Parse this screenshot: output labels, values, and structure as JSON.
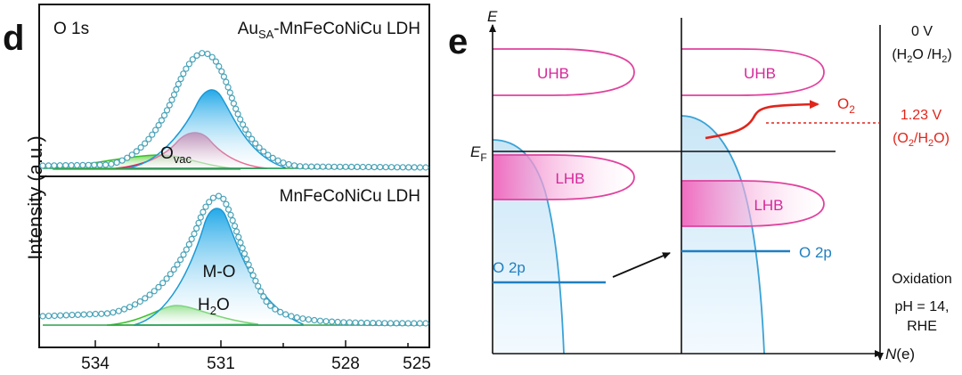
{
  "panel_d": {
    "letter": "d",
    "spectrum_label": "O 1s",
    "top_sample": {
      "prefix": "Au",
      "subscript": "SA",
      "suffix": "-MnFeCoNiCu LDH"
    },
    "bottom_sample": "MnFeCoNiCu LDH",
    "y_axis_label": "Intensity (a.u.)",
    "peaks": {
      "ovac": {
        "main": "O",
        "sub": "vac"
      },
      "mo": "M-O",
      "h2o": {
        "a": "H",
        "sub": "2",
        "b": "O"
      }
    }
  },
  "panel_e": {
    "letter": "e",
    "y_axis": "E",
    "x_axis": {
      "main": "N",
      "rest": "(e)"
    },
    "fermi": {
      "main": "E",
      "sub": "F"
    },
    "uhb_label": "UHB",
    "lhb_label": "LHB",
    "o2p_label": "O 2p",
    "o2_label": {
      "main": "O",
      "sub": "2"
    },
    "scale": {
      "zero_v": "0 V",
      "h2_couple": {
        "open": "(H",
        "s1": "2",
        "mid": "O /H",
        "s2": "2",
        "close": ")"
      },
      "v123": "1.23 V",
      "o2_couple": {
        "open": "(O",
        "s1": "2",
        "mid": "/H",
        "s2": "2",
        "close": "O)"
      },
      "oxidation": "Oxidation",
      "ph": "pH = 14,",
      "rhe": "RHE"
    }
  },
  "chart_data": {
    "type": "line",
    "title": "O 1s",
    "xlabel": "",
    "ylabel": "Intensity (a.u.)",
    "x_ticks": [
      534,
      531,
      528,
      525
    ],
    "xlim": [
      535.5,
      525
    ],
    "x_reversed": true,
    "panels": [
      {
        "name": "Au_SA-MnFeCoNiCu LDH",
        "components": [
          {
            "label": "M-O",
            "center": 530.3,
            "height": 0.72,
            "color": "#23a9e8"
          },
          {
            "label": "O_vac",
            "center": 531.1,
            "height": 0.33,
            "color": "#f03a6e"
          },
          {
            "label": "H2O",
            "center": 532.2,
            "height": 0.11,
            "color": "#55cc44"
          }
        ]
      },
      {
        "name": "MnFeCoNiCu LDH",
        "components": [
          {
            "label": "M-O",
            "center": 530.5,
            "height": 0.9,
            "color": "#23a9e8"
          },
          {
            "label": "H2O",
            "center": 531.5,
            "height": 0.2,
            "color": "#55cc44"
          }
        ]
      }
    ]
  }
}
